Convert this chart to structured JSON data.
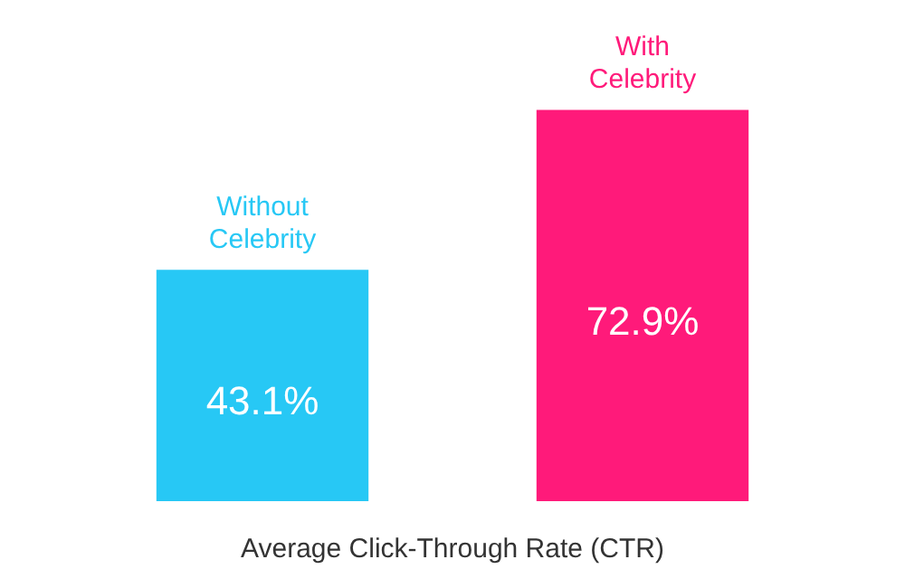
{
  "chart_data": {
    "type": "bar",
    "xlabel": "Average Click-Through Rate (CTR)",
    "categories": [
      "Without Celebrity",
      "With Celebrity"
    ],
    "values": [
      43.1,
      72.9
    ],
    "colors": [
      "#27c8f5",
      "#ff1a7a"
    ],
    "value_labels": [
      "43.1%",
      "72.9%"
    ],
    "grid": false,
    "legend": false
  }
}
